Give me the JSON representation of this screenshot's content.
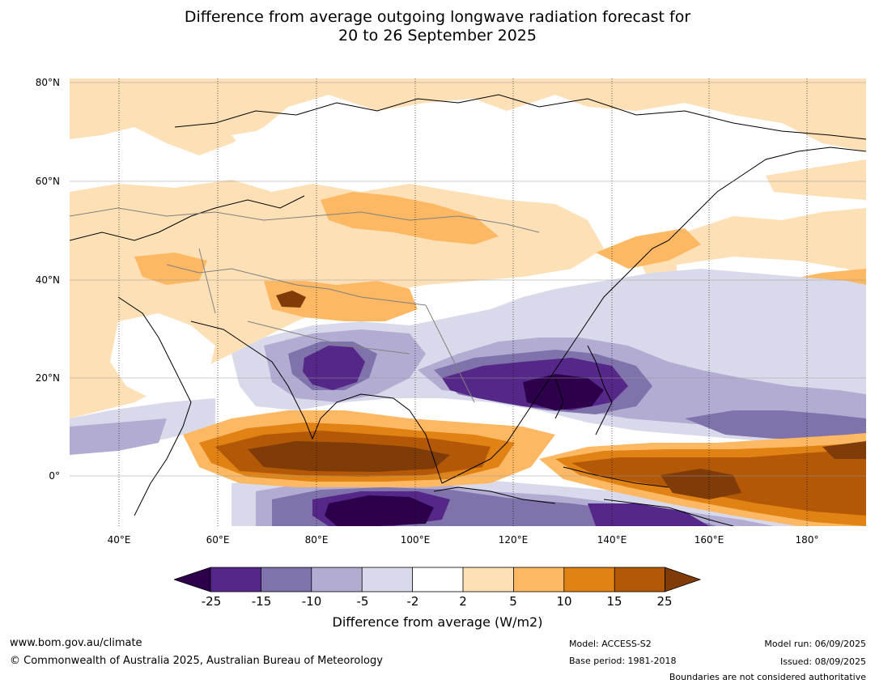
{
  "title": {
    "line1": "Difference from average outgoing longwave radiation forecast for",
    "line2": "20 to 26 September 2025"
  },
  "map": {
    "latitude_labels": [
      "80°N",
      "60°N",
      "40°N",
      "20°N",
      "0°"
    ],
    "longitude_labels": [
      "40°E",
      "60°E",
      "80°E",
      "100°E",
      "120°E",
      "140°E",
      "160°E",
      "180°"
    ]
  },
  "colorbar": {
    "ticks": [
      "-25",
      "-15",
      "-10",
      "-5",
      "-2",
      "2",
      "5",
      "10",
      "15",
      "25"
    ],
    "label": "Difference from average (W/m2)",
    "colors": {
      "under": "#2d004b",
      "c1": "#542788",
      "c2": "#8073ac",
      "c3": "#b2abd2",
      "c4": "#d8daeb",
      "c5": "#ffffff",
      "c6": "#fee0b6",
      "c7": "#fdb863",
      "c8": "#e08214",
      "c9": "#b35806",
      "over": "#7f3b08"
    }
  },
  "footer": {
    "website": "www.bom.gov.au/climate",
    "copyright": "© Commonwealth of Australia 2025, Australian Bureau of Meteorology",
    "model": "Model: ACCESS-S2",
    "base_period": "Base period: 1981-2018",
    "model_run": "Model run: 06/09/2025",
    "issued": "Issued: 08/09/2025",
    "disclaimer": "Boundaries are not considered authoritative"
  }
}
